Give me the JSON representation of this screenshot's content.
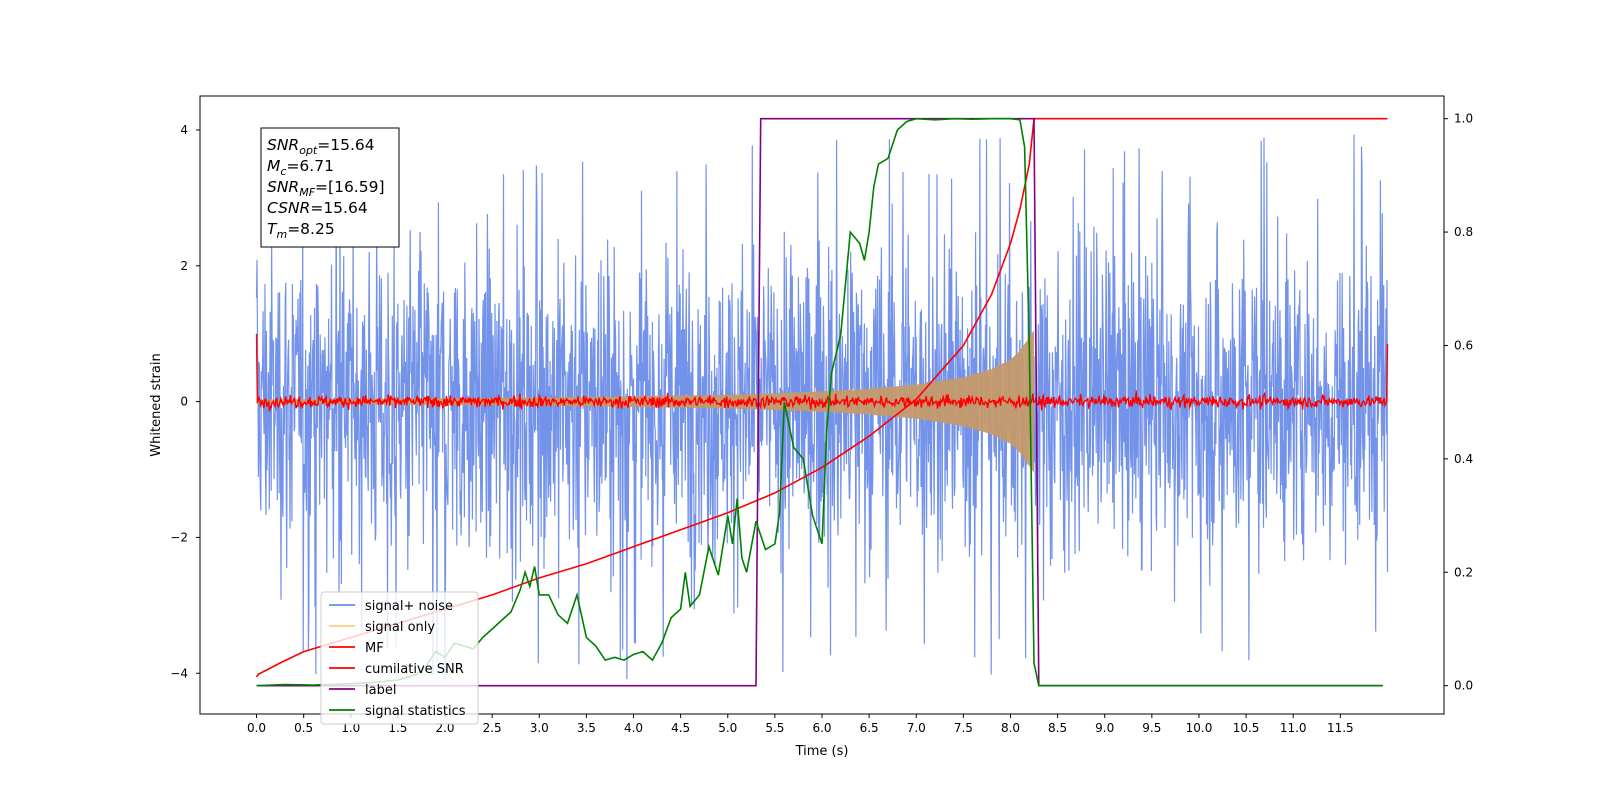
{
  "chart_data": {
    "type": "line",
    "title": "",
    "xlabel": "Time (s)",
    "ylabel_left": "Whitened strain",
    "ylabel_right": "",
    "xlim": [
      -0.6,
      12.6
    ],
    "ylim_left": [
      -4.6,
      4.5
    ],
    "ylim_right": [
      -0.05,
      1.04
    ],
    "xticks": [
      0.0,
      0.5,
      1.0,
      1.5,
      2.0,
      2.5,
      3.0,
      3.5,
      4.0,
      4.5,
      5.0,
      5.5,
      6.0,
      6.5,
      7.0,
      7.5,
      8.0,
      8.5,
      9.0,
      9.5,
      10.0,
      10.5,
      11.0,
      11.5
    ],
    "xtick_labels": [
      "0.0",
      "0.5",
      "1.0",
      "1.5",
      "2.0",
      "2.5",
      "3.0",
      "3.5",
      "4.0",
      "4.5",
      "5.0",
      "5.5",
      "6.0",
      "6.5",
      "7.0",
      "7.5",
      "8.0",
      "8.5",
      "9.0",
      "9.5",
      "10.0",
      "10.5",
      "11.0",
      "11.5"
    ],
    "yticks_left": [
      -4,
      -2,
      0,
      2,
      4
    ],
    "ytick_labels_left": [
      "−4",
      "−2",
      "0",
      "2",
      "4"
    ],
    "yticks_right": [
      0.0,
      0.2,
      0.4,
      0.6,
      0.8,
      1.0
    ],
    "ytick_labels_right": [
      "0.0",
      "0.2",
      "0.4",
      "0.6",
      "0.8",
      "1.0"
    ],
    "grid": false,
    "legend_position": "lower-left",
    "legend": [
      {
        "label": "signal+ noise",
        "color": "#6b8ce8"
      },
      {
        "label": "signal only",
        "color": "#ffcc80"
      },
      {
        "label": "MF",
        "color": "#ff0000"
      },
      {
        "label": "cumilative SNR",
        "color": "#ff0000"
      },
      {
        "label": "label",
        "color": "#800080"
      },
      {
        "label": "signal statistics",
        "color": "#008000"
      }
    ],
    "info_box": [
      {
        "base": "SNR",
        "sub": "opt",
        "rest": "=15.64"
      },
      {
        "base": "M",
        "sub": "c",
        "rest": "=6.71"
      },
      {
        "base": "SNR",
        "sub": "MF",
        "rest": "=[16.59]"
      },
      {
        "base": "CSNR",
        "sub": "",
        "rest": "=15.64"
      },
      {
        "base": "T",
        "sub": "m",
        "rest": "=8.25"
      }
    ],
    "series": [
      {
        "name": "signal+ noise",
        "axis": "left",
        "color": "#6b8ce8",
        "kind": "noise",
        "x_range": [
          0.0,
          12.0
        ],
        "spread": [
          -4.1,
          4.0
        ]
      },
      {
        "name": "signal only",
        "axis": "left",
        "color": "#c49a6c",
        "kind": "chirp_envelope",
        "x": [
          0.0,
          1.0,
          2.0,
          3.0,
          4.0,
          5.0,
          6.0,
          6.5,
          7.0,
          7.5,
          7.8,
          8.0,
          8.1,
          8.2,
          8.25
        ],
        "amplitude": [
          0.03,
          0.04,
          0.05,
          0.06,
          0.08,
          0.1,
          0.15,
          0.19,
          0.25,
          0.36,
          0.48,
          0.62,
          0.75,
          0.95,
          1.05
        ]
      },
      {
        "name": "MF",
        "axis": "left",
        "color": "#ff0000",
        "kind": "flat_noise",
        "x_range": [
          0.0,
          12.0
        ],
        "level": 0.0,
        "end_values": [
          1.0,
          0.85
        ]
      },
      {
        "name": "cumilative SNR",
        "axis": "right",
        "color": "#ff0000",
        "x": [
          0.0,
          0.02,
          0.25,
          0.5,
          1.0,
          1.5,
          2.0,
          2.5,
          3.0,
          3.5,
          4.0,
          4.5,
          5.0,
          5.5,
          6.0,
          6.5,
          7.0,
          7.5,
          7.8,
          8.0,
          8.1,
          8.2,
          8.25,
          9.0,
          10.0,
          11.0,
          12.0
        ],
        "y": [
          0.015,
          0.02,
          0.04,
          0.06,
          0.085,
          0.11,
          0.135,
          0.16,
          0.19,
          0.215,
          0.245,
          0.275,
          0.305,
          0.34,
          0.385,
          0.44,
          0.505,
          0.6,
          0.69,
          0.78,
          0.84,
          0.92,
          1.0,
          1.0,
          1.0,
          1.0,
          1.0
        ]
      },
      {
        "name": "label",
        "axis": "right",
        "color": "#800080",
        "x": [
          0.0,
          5.3,
          5.35,
          8.25,
          8.3,
          11.95
        ],
        "y": [
          0.0,
          0.0,
          1.0,
          1.0,
          0.0,
          0.0
        ]
      },
      {
        "name": "signal statistics",
        "axis": "right",
        "color": "#008000",
        "x": [
          0.0,
          0.3,
          0.6,
          0.9,
          1.2,
          1.5,
          1.7,
          1.8,
          1.9,
          2.0,
          2.1,
          2.2,
          2.3,
          2.4,
          2.5,
          2.6,
          2.7,
          2.8,
          2.85,
          2.9,
          2.95,
          3.0,
          3.1,
          3.2,
          3.3,
          3.4,
          3.5,
          3.6,
          3.7,
          3.8,
          3.9,
          4.0,
          4.1,
          4.2,
          4.3,
          4.4,
          4.5,
          4.55,
          4.6,
          4.7,
          4.8,
          4.9,
          5.0,
          5.05,
          5.1,
          5.15,
          5.2,
          5.3,
          5.4,
          5.5,
          5.55,
          5.6,
          5.7,
          5.8,
          5.9,
          6.0,
          6.05,
          6.1,
          6.2,
          6.3,
          6.4,
          6.45,
          6.5,
          6.55,
          6.6,
          6.7,
          6.8,
          6.9,
          7.0,
          7.2,
          7.4,
          7.6,
          7.8,
          8.0,
          8.1,
          8.15,
          8.2,
          8.25,
          8.3,
          9.0,
          10.0,
          11.0,
          11.95
        ],
        "y": [
          0.0,
          0.002,
          0.001,
          0.003,
          0.005,
          0.01,
          0.02,
          0.035,
          0.06,
          0.05,
          0.075,
          0.07,
          0.065,
          0.085,
          0.1,
          0.115,
          0.13,
          0.17,
          0.2,
          0.175,
          0.21,
          0.16,
          0.16,
          0.125,
          0.11,
          0.16,
          0.085,
          0.07,
          0.045,
          0.05,
          0.045,
          0.055,
          0.06,
          0.045,
          0.075,
          0.12,
          0.135,
          0.2,
          0.14,
          0.16,
          0.245,
          0.195,
          0.3,
          0.25,
          0.33,
          0.225,
          0.2,
          0.29,
          0.24,
          0.25,
          0.305,
          0.5,
          0.42,
          0.4,
          0.3,
          0.25,
          0.45,
          0.55,
          0.62,
          0.8,
          0.78,
          0.75,
          0.8,
          0.88,
          0.92,
          0.93,
          0.98,
          0.995,
          1.0,
          0.998,
          1.0,
          0.999,
          1.0,
          1.0,
          0.998,
          0.95,
          0.6,
          0.04,
          0.0,
          0.0,
          0.0,
          0.0,
          0.0
        ]
      }
    ]
  }
}
